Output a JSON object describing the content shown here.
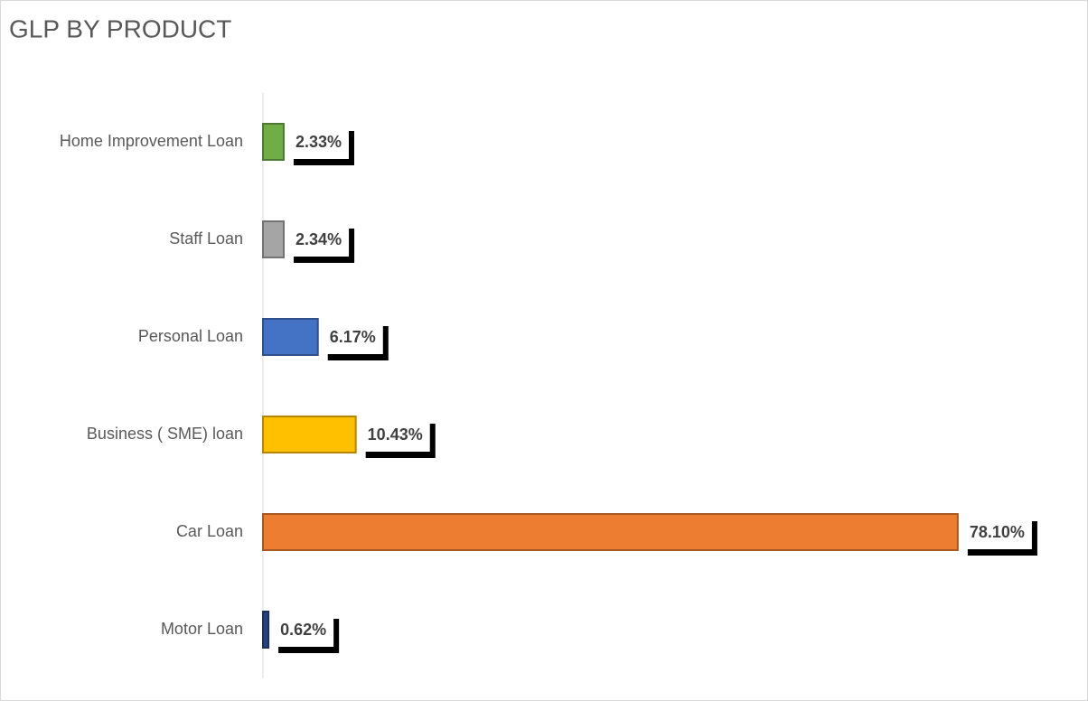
{
  "chart_data": {
    "type": "bar",
    "orientation": "horizontal",
    "title": "GLP BY PRODUCT",
    "categories": [
      "Home Improvement Loan",
      "Staff Loan",
      "Personal Loan",
      "Business ( SME) loan",
      "Car Loan",
      "Motor Loan"
    ],
    "values": [
      2.33,
      2.34,
      6.17,
      10.43,
      78.1,
      0.62
    ],
    "value_labels": [
      "2.33%",
      "2.34%",
      "6.17%",
      "10.43%",
      "78.10%",
      "0.62%"
    ],
    "colors": [
      "#70ad47",
      "#a5a5a5",
      "#4472c4",
      "#ffc000",
      "#ed7d31",
      "#264478"
    ],
    "xlim": [
      0,
      90
    ],
    "grid": false
  }
}
